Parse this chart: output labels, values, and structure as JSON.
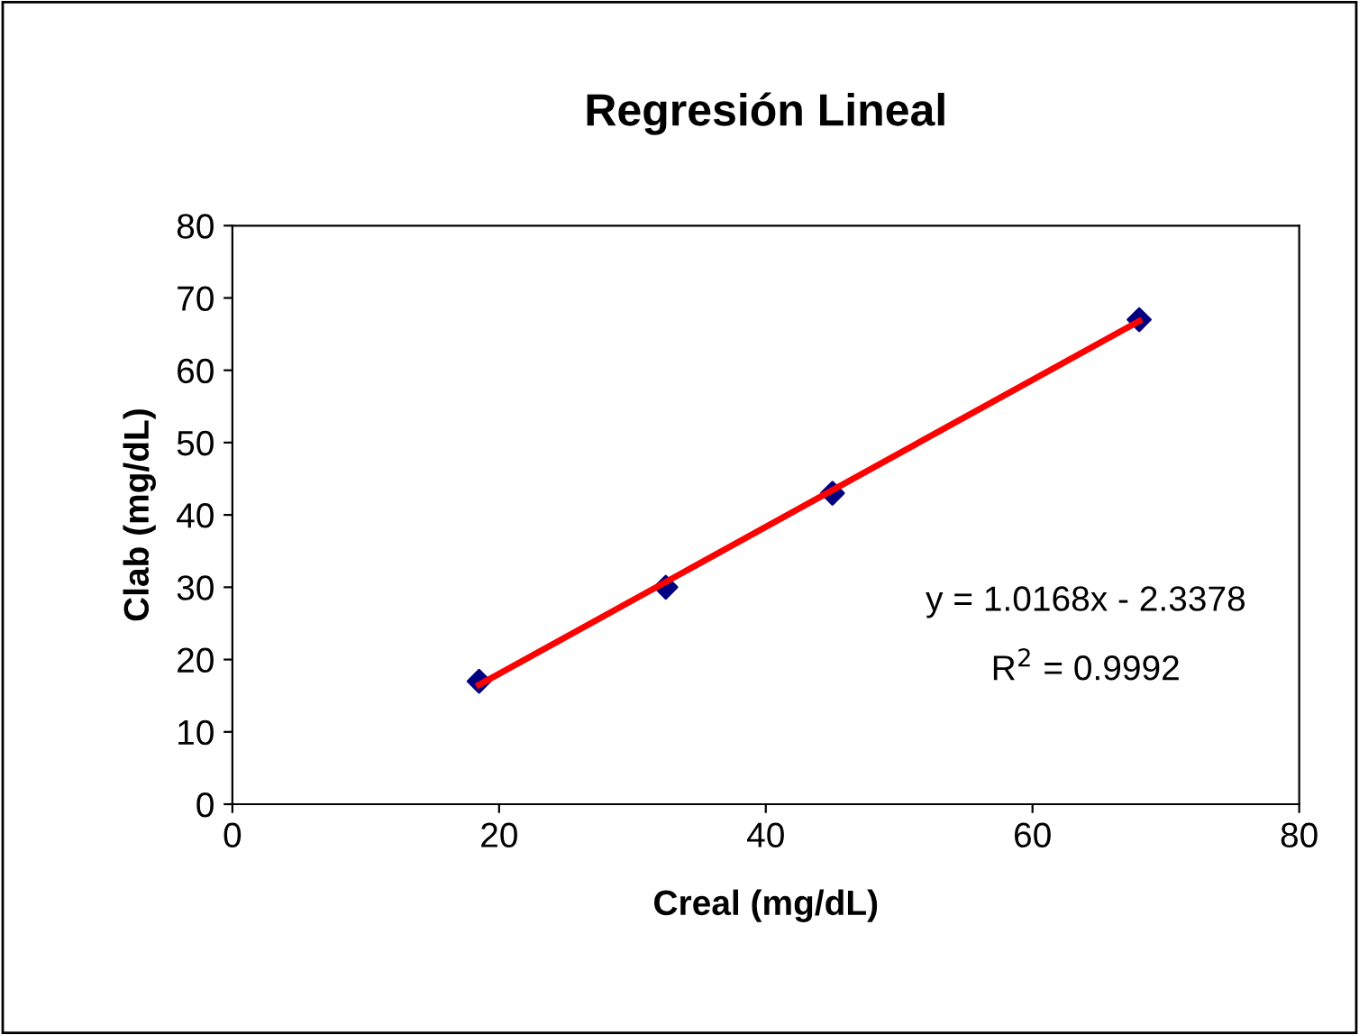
{
  "chart_data": {
    "type": "scatter",
    "title": "Regresión Lineal",
    "xlabel": "Creal (mg/dL)",
    "ylabel": "Clab (mg/dL)",
    "series": [
      {
        "color": "#000080",
        "marker": "diamond",
        "x": [
          18.5,
          32.5,
          45,
          68
        ],
        "values": [
          17,
          30,
          43,
          67
        ]
      },
      {
        "type": "line",
        "color": "#ff0000",
        "marker": "none",
        "line_style": "solid",
        "x": [
          18.5,
          68
        ],
        "values": [
          16.5,
          66.8
        ]
      }
    ],
    "annotations": [
      "y = 1.0168x - 2.3378",
      "R$^{2}$ = 0.9992"
    ],
    "xlim": [
      0,
      80
    ],
    "xticks": [
      0,
      20,
      40,
      60,
      80
    ],
    "ylim": [
      0,
      80
    ],
    "yticks": [
      0,
      10,
      20,
      30,
      40,
      50,
      60,
      70,
      80
    ],
    "grid": false,
    "legend": false
  }
}
